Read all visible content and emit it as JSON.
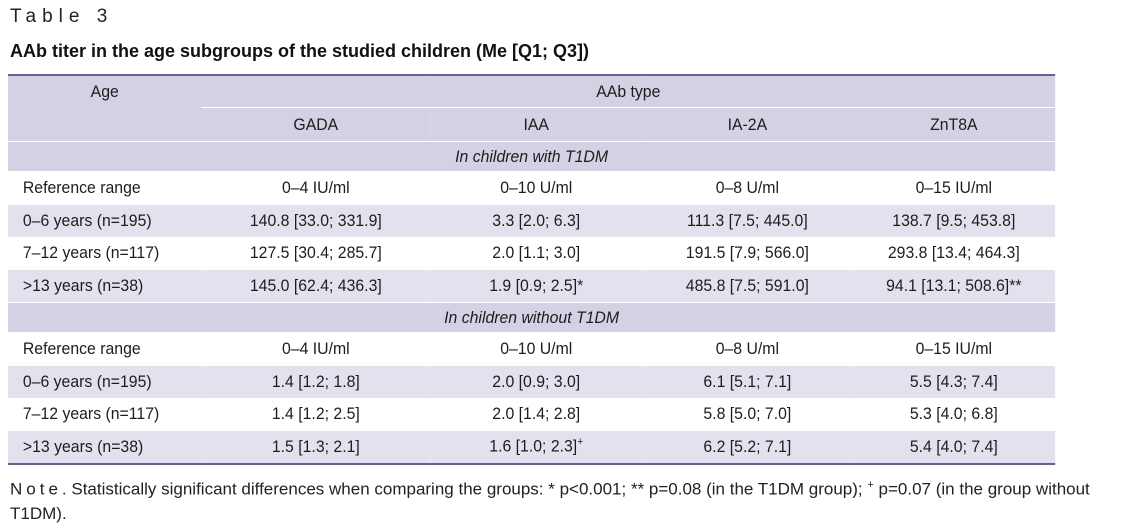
{
  "table_label": "Table 3",
  "table_title": "AAb titer in the age subgroups of the studied children (Me [Q1; Q3])",
  "header": {
    "age": "Age",
    "aab_type": "AAb type",
    "columns": [
      "GADA",
      "IAA",
      "IA-2A",
      "ZnT8A"
    ]
  },
  "sections": [
    {
      "title": "In children with T1DM",
      "rows": [
        {
          "age": "Reference range",
          "values": [
            "0–4 IU/ml",
            "0–10 U/ml",
            "0–8 U/ml",
            "0–15 IU/ml"
          ]
        },
        {
          "age": "0–6 years (n=195)",
          "values": [
            "140.8 [33.0; 331.9]",
            "3.3 [2.0; 6.3]",
            "111.3 [7.5; 445.0]",
            "138.7 [9.5; 453.8]"
          ]
        },
        {
          "age": "7–12 years (n=117)",
          "values": [
            "127.5 [30.4; 285.7]",
            "2.0 [1.1; 3.0]",
            "191.5 [7.9; 566.0]",
            "293.8 [13.4; 464.3]"
          ]
        },
        {
          "age": ">13 years (n=38)",
          "values": [
            "145.0 [62.4; 436.3]",
            "1.9 [0.9; 2.5]*",
            "485.8 [7.5; 591.0]",
            "94.1 [13.1; 508.6]**"
          ]
        }
      ]
    },
    {
      "title": "In children without T1DM",
      "rows": [
        {
          "age": "Reference range",
          "values": [
            "0–4 IU/ml",
            "0–10 U/ml",
            "0–8 U/ml",
            "0–15 IU/ml"
          ]
        },
        {
          "age": "0–6 years (n=195)",
          "values": [
            "1.4 [1.2; 1.8]",
            "2.0 [0.9; 3.0]",
            "6.1 [5.1; 7.1]",
            "5.5 [4.3; 7.4]"
          ]
        },
        {
          "age": "7–12 years (n=117)",
          "values": [
            "1.4 [1.2; 2.5]",
            "2.0 [1.4; 2.8]",
            "5.8 [5.0; 7.0]",
            "5.3 [4.0; 6.8]"
          ]
        },
        {
          "age": ">13 years (n=38)",
          "values": [
            "1.5 [1.3; 2.1]",
            "1.6 [1.0; 2.3]",
            "6.2 [5.2; 7.1]",
            "5.4 [4.0; 7.4]"
          ],
          "iaa_superscript": "+"
        }
      ]
    }
  ],
  "note": {
    "lead": "Note",
    "text_a": ". Statistically significant differences when comparing the groups: * p<0.001; ** p=0.08 (in the T1DM group);",
    "superscript": "+",
    "text_b": "p=0.07 (in the group without T1DM)."
  }
}
